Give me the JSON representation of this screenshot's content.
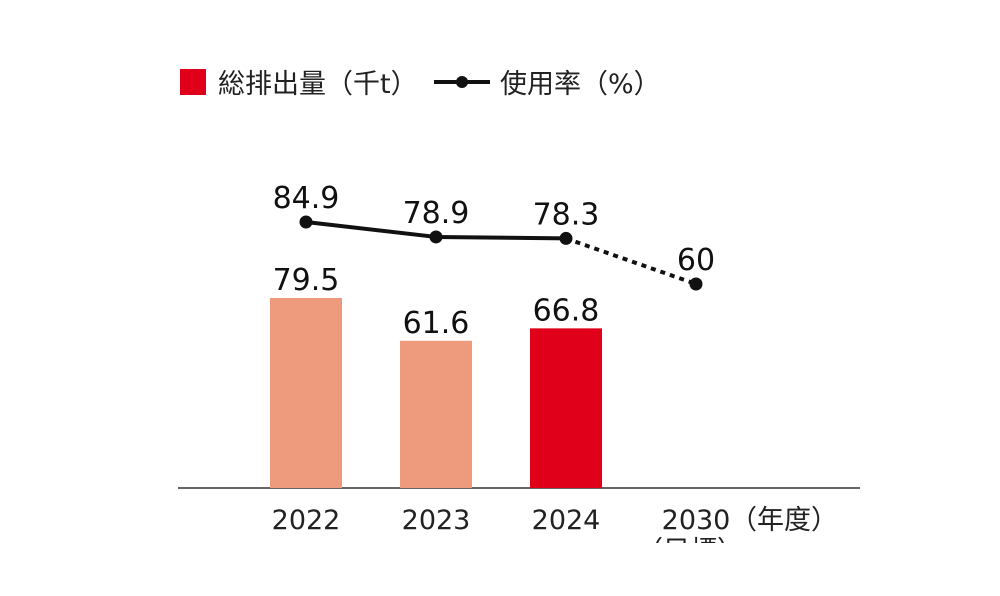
{
  "chart_data": {
    "type": "bar+line",
    "legend": [
      {
        "label": "総排出量（千t）",
        "type": "bar",
        "color": "#e0001a"
      },
      {
        "label": "使用率（%）",
        "type": "line",
        "color": "#111111"
      }
    ],
    "legend_position": "top-left",
    "categories": [
      "2022",
      "2023",
      "2024",
      "2030"
    ],
    "category_sublabels": [
      "",
      "",
      "",
      "（目標）"
    ],
    "xunit": "（年度）",
    "series": [
      {
        "name": "総排出量（千t）",
        "type": "bar",
        "values": [
          79.5,
          61.6,
          66.8,
          null
        ],
        "labels": [
          "79.5",
          "61.6",
          "66.8",
          ""
        ],
        "colors": [
          "#ee9a7c",
          "#ee9a7c",
          "#e0001a",
          null
        ]
      },
      {
        "name": "使用率（%）",
        "type": "line",
        "values": [
          84.9,
          78.9,
          78.3,
          60
        ],
        "labels": [
          "84.9",
          "78.9",
          "78.3",
          "60"
        ],
        "dashed_from_index": 2,
        "color": "#111111"
      }
    ],
    "grid": false
  }
}
